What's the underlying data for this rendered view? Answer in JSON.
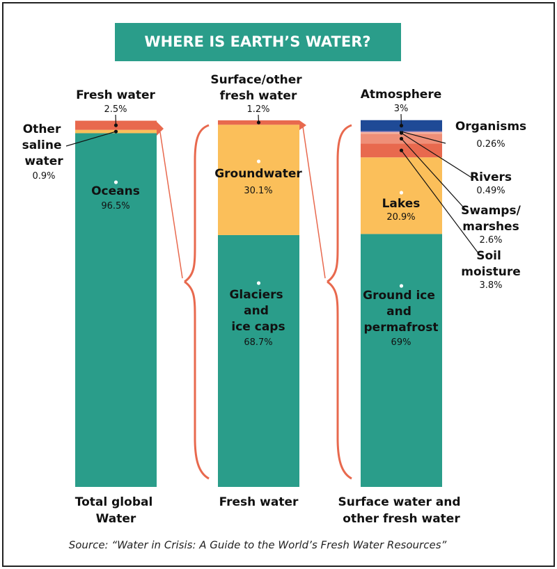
{
  "chart_data": {
    "type": "stacked-bar",
    "title": "WHERE IS EARTH’S WATER?",
    "source": "Source: “Water in Crisis: A Guide to the World’s Fresh Water Resources”",
    "bars": [
      {
        "label": "Total global Water",
        "segments": [
          "Oceans",
          "Other saline water",
          "Fresh water"
        ],
        "values": [
          96.5,
          0.9,
          2.5
        ],
        "value_labels": [
          "96.5%",
          "0.9%",
          "2.5%"
        ],
        "colors": [
          "#2a9d8a",
          "#fbbf5a",
          "#e8694e"
        ]
      },
      {
        "label": "Fresh water",
        "segments": [
          "Glaciers and ice caps",
          "Groundwater",
          "Surface/other fresh water"
        ],
        "values": [
          68.7,
          30.1,
          1.2
        ],
        "value_labels": [
          "68.7%",
          "30.1%",
          "1.2%"
        ],
        "colors": [
          "#2a9d8a",
          "#fbbf5a",
          "#e8694e"
        ]
      },
      {
        "label": "Surface water and other fresh water",
        "segments": [
          "Ground ice and permafrost",
          "Lakes",
          "Soil moisture",
          "Swamps/marshes",
          "Rivers",
          "Organisms",
          "Atmosphere"
        ],
        "values": [
          69,
          20.9,
          3.8,
          2.6,
          0.49,
          0.26,
          3
        ],
        "value_labels": [
          "69%",
          "20.9%",
          "3.8%",
          "2.6%",
          "0.49%",
          "0.26%",
          "3%"
        ],
        "colors": [
          "#2a9d8a",
          "#fbbf5a",
          "#e8694e",
          "#ef8f78",
          "#f4b3a1",
          "#9b7fb8",
          "#1f4a96"
        ]
      }
    ]
  }
}
